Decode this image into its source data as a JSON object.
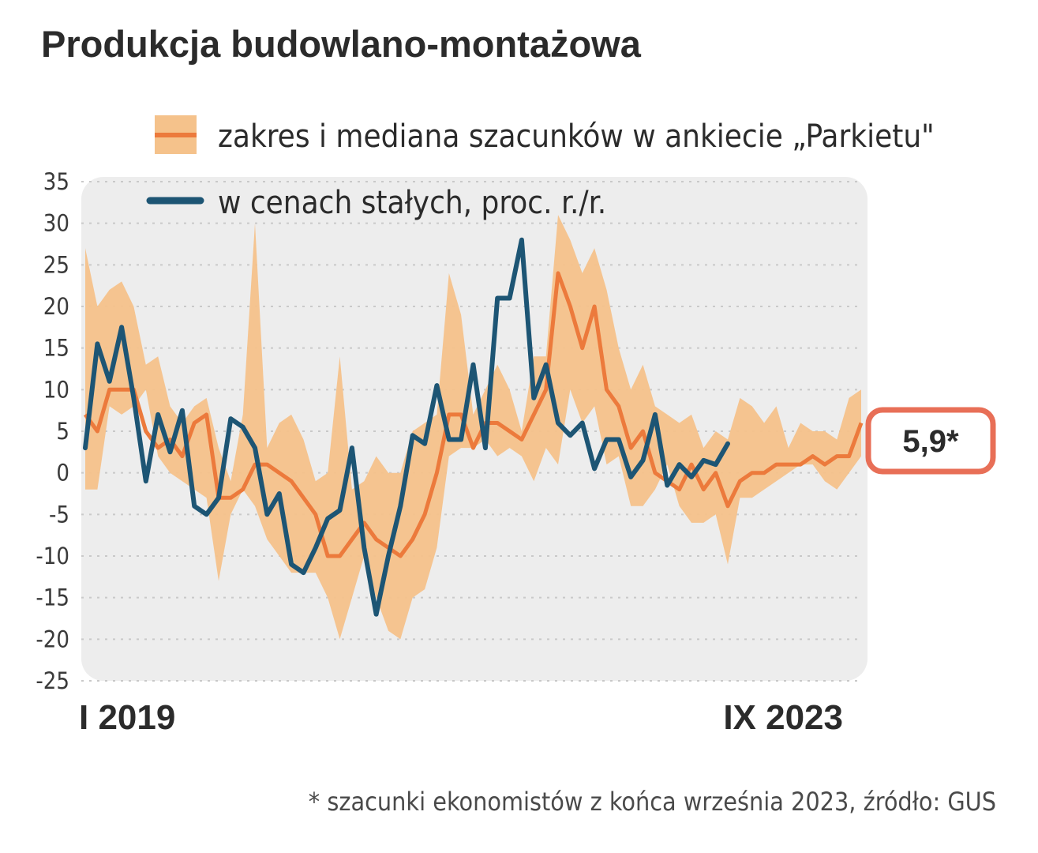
{
  "chart_data": {
    "type": "area",
    "title": "Produkcja budowlano-montażowa",
    "xlabel": "",
    "ylabel": "",
    "ylim": [
      -25,
      35
    ],
    "yticks": [
      35,
      30,
      25,
      20,
      15,
      10,
      5,
      0,
      -5,
      -10,
      -15,
      -20,
      -25
    ],
    "x_start_label": "I 2019",
    "x_end_label": "IX 2023",
    "grid": true,
    "legend_position": "top",
    "callout": "5,9*",
    "footnote": "* szacunki ekonomistów z końca września 2023, źródło: GUS",
    "colors": {
      "band": "#f5c28b",
      "median": "#ec7a3c",
      "actual": "#1d5574",
      "plot_bg": "#ededed",
      "grid": "#c9c9c9",
      "callout_border": "#e86f57"
    },
    "series": [
      {
        "name": "zakres i mediana szacunków w ankiecie „Parkietu\"",
        "kind": "band",
        "low": [
          -2,
          -2,
          8,
          7,
          8,
          10,
          2,
          0,
          -1,
          -2,
          -3,
          -13,
          -5,
          -2,
          -4,
          -8,
          -10,
          -12,
          -12,
          -12,
          -15,
          -20,
          -15,
          -10,
          -15,
          -19,
          -20,
          -15,
          -14,
          -9,
          2,
          3,
          3,
          4,
          2,
          3,
          2,
          -1,
          3,
          1,
          10,
          6,
          8,
          1,
          2,
          -4,
          -4,
          -2,
          1,
          -4,
          -6,
          -6,
          -5,
          -11,
          -3,
          -3,
          -2,
          -1,
          0,
          1,
          1,
          -1,
          -2,
          0,
          2
        ],
        "high": [
          27,
          20,
          22,
          23,
          20,
          13,
          14,
          8,
          6,
          8,
          9,
          3,
          -1,
          7,
          30,
          3,
          6,
          7,
          4,
          -1,
          0,
          14,
          -2,
          -1,
          2,
          0,
          0,
          5,
          6,
          7,
          24,
          19,
          7,
          10,
          13,
          10,
          5,
          14,
          14,
          31,
          28,
          24,
          27,
          22,
          15,
          10,
          13,
          8,
          7,
          6,
          7,
          3,
          5,
          4,
          9,
          8,
          6,
          8,
          3,
          6,
          5,
          5,
          4,
          9,
          10
        ],
        "median": [
          7,
          5,
          10,
          10,
          10,
          5,
          3,
          4,
          2,
          6,
          7,
          -3,
          -3,
          -2,
          1,
          1,
          0,
          -1,
          -3,
          -5,
          -10,
          -10,
          -8,
          -6,
          -8,
          -9,
          -10,
          -8,
          -5,
          0,
          7,
          7,
          3,
          6,
          6,
          5,
          4,
          7,
          10,
          24,
          20,
          15,
          20,
          10,
          8,
          3,
          5,
          0,
          -1,
          -2,
          1,
          -2,
          0,
          -4,
          -1,
          0,
          0,
          1,
          1,
          1,
          2,
          1,
          2,
          2,
          6
        ]
      },
      {
        "name": "w cenach stałych, proc. r./r.",
        "kind": "line",
        "values": [
          3,
          15.5,
          11,
          17.5,
          9,
          -1,
          7,
          2.5,
          7.5,
          -4,
          -5,
          -3,
          6.5,
          5.5,
          3,
          -5,
          -2.5,
          -11,
          -12,
          -9,
          -5.5,
          -4.5,
          3,
          -9,
          -17,
          -10,
          -4,
          4.5,
          3.5,
          10.5,
          4,
          4,
          13,
          3,
          21,
          21,
          28,
          9,
          13,
          6,
          4.5,
          6,
          0.5,
          4,
          4,
          -0.5,
          1.5,
          7,
          -1.5,
          1,
          -0.5,
          1.5,
          1,
          3.5
        ]
      }
    ]
  }
}
